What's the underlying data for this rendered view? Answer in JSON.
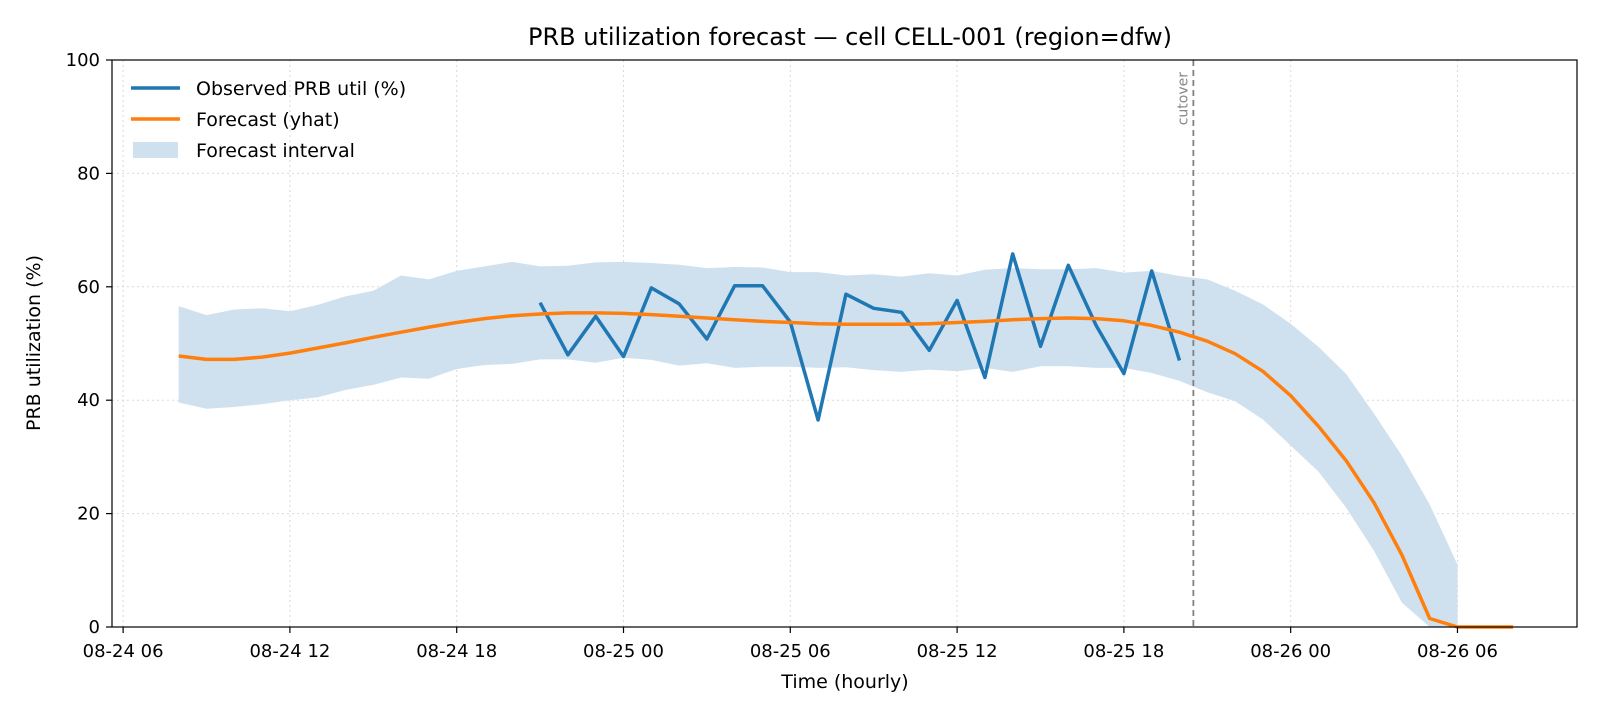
{
  "chart_data": {
    "type": "line",
    "title": "PRB utilization forecast — cell CELL-001 (region=dfw)",
    "xlabel": "Time (hourly)",
    "ylabel": "PRB utilization (%)",
    "ylim": [
      0,
      100
    ],
    "xlim_hours": [
      -0.4,
      52.3
    ],
    "yticks": [
      0,
      20,
      40,
      60,
      80,
      100
    ],
    "xticks": [
      {
        "h": 0,
        "label": "08-24 06"
      },
      {
        "h": 6,
        "label": "08-24 12"
      },
      {
        "h": 12,
        "label": "08-24 18"
      },
      {
        "h": 18,
        "label": "08-25 00"
      },
      {
        "h": 24,
        "label": "08-25 06"
      },
      {
        "h": 30,
        "label": "08-25 12"
      },
      {
        "h": 36,
        "label": "08-25 18"
      },
      {
        "h": 42,
        "label": "08-26 00"
      },
      {
        "h": 48,
        "label": "08-26 06"
      }
    ],
    "grid": true,
    "legend_position": "top-left",
    "colors": {
      "observed": "#1f77b4",
      "forecast": "#ff7f0e",
      "interval": "#cfe1ef",
      "cutover": "#808080"
    },
    "series": [
      {
        "name": "Observed PRB util (%)",
        "key": "observed",
        "x_hours": [
          15,
          16,
          17,
          18,
          19,
          20,
          21,
          22,
          23,
          24,
          25,
          26,
          27,
          28,
          29,
          30,
          31,
          32,
          33,
          34,
          35,
          36,
          37,
          38
        ],
        "values": [
          57.2,
          48.0,
          54.8,
          47.7,
          59.8,
          57.0,
          50.8,
          60.2,
          60.2,
          53.8,
          36.5,
          58.7,
          56.2,
          55.5,
          48.8,
          57.6,
          44.0,
          65.8,
          49.5,
          63.8,
          53.2,
          44.7,
          62.8,
          47.0
        ]
      },
      {
        "name": "Forecast (yhat)",
        "key": "forecast",
        "x_hours": [
          2,
          3,
          4,
          5,
          6,
          7,
          8,
          9,
          10,
          11,
          12,
          13,
          14,
          15,
          16,
          17,
          18,
          19,
          20,
          21,
          22,
          23,
          24,
          25,
          26,
          27,
          28,
          29,
          30,
          31,
          32,
          33,
          34,
          35,
          36,
          37,
          38,
          39,
          40,
          41,
          42,
          43,
          44,
          45,
          46,
          47,
          48,
          49,
          50
        ],
        "values": [
          47.8,
          47.2,
          47.2,
          47.6,
          48.3,
          49.2,
          50.1,
          51.1,
          52.0,
          52.9,
          53.7,
          54.4,
          54.9,
          55.2,
          55.4,
          55.4,
          55.3,
          55.1,
          54.8,
          54.5,
          54.2,
          53.9,
          53.7,
          53.5,
          53.4,
          53.4,
          53.4,
          53.5,
          53.7,
          53.9,
          54.2,
          54.4,
          54.5,
          54.4,
          54.0,
          53.2,
          52.0,
          50.4,
          48.2,
          45.1,
          40.8,
          35.4,
          29.3,
          21.9,
          12.7,
          1.5,
          0.0,
          0.0,
          0.0
        ]
      }
    ],
    "interval": {
      "name": "Forecast interval",
      "x_hours": [
        2,
        3,
        4,
        5,
        6,
        7,
        8,
        9,
        10,
        11,
        12,
        13,
        14,
        15,
        16,
        17,
        18,
        19,
        20,
        21,
        22,
        23,
        24,
        25,
        26,
        27,
        28,
        29,
        30,
        31,
        32,
        33,
        34,
        35,
        36,
        37,
        38,
        39,
        40,
        41,
        42,
        43,
        44,
        45,
        46,
        47,
        48
      ],
      "upper": [
        56.6,
        55.0,
        56.0,
        56.2,
        55.7,
        56.8,
        58.3,
        59.3,
        62.0,
        61.3,
        62.8,
        63.6,
        64.4,
        63.6,
        63.7,
        64.3,
        64.4,
        64.2,
        63.9,
        63.3,
        63.5,
        63.4,
        62.6,
        62.6,
        62.0,
        62.2,
        61.8,
        62.4,
        62.0,
        63.0,
        63.3,
        63.1,
        63.1,
        63.3,
        62.5,
        62.8,
        61.9,
        61.3,
        59.3,
        56.9,
        53.5,
        49.4,
        44.6,
        37.6,
        30.2,
        21.6,
        11.0
      ],
      "lower": [
        39.6,
        38.5,
        38.8,
        39.3,
        40.0,
        40.5,
        41.8,
        42.7,
        44.0,
        43.8,
        45.5,
        46.2,
        46.4,
        47.2,
        47.2,
        46.6,
        47.5,
        47.1,
        46.1,
        46.5,
        45.7,
        45.9,
        45.9,
        45.7,
        45.8,
        45.3,
        45.0,
        45.4,
        45.1,
        45.7,
        45.0,
        46.0,
        46.0,
        45.7,
        45.7,
        44.8,
        43.4,
        41.4,
        39.8,
        36.6,
        32.0,
        27.4,
        21.0,
        13.4,
        4.3,
        0.0,
        0.0
      ]
    },
    "annotations": [
      {
        "type": "vline",
        "x_hour": 38.5,
        "label": "cutover"
      }
    ]
  }
}
